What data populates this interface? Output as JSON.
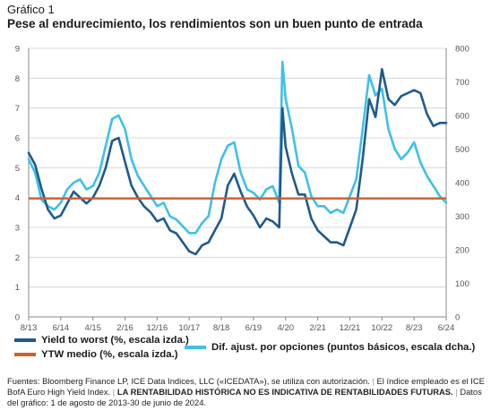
{
  "figure_label": "Gráfico 1",
  "title": "Pese al endurecimiento, los rendimientos son un buen punto de entrada",
  "source": {
    "part1": "Fuentes: Bloomberg Finance LP, ICE Data Indices, LLC («ICEDATA»), se utiliza con autorización.",
    "part2": "El índice empleado es el ICE BofA Euro High Yield Index.",
    "part3": "LA RENTABILIDAD HISTÓRICA NO ES INDICATIVA DE RENTABILIDADES FUTURAS.",
    "part4": "Datos del gráfico: 1 de agosto de 2013-30 de junio de 2024."
  },
  "colors": {
    "ytw": "#1f5a8c",
    "oas": "#3ec0ea",
    "mean": "#d0602a",
    "grid": "#cfcfcf",
    "axis": "#888888"
  },
  "chart_data": {
    "type": "line",
    "x_tick_labels": [
      "8/13",
      "6/14",
      "4/15",
      "2/16",
      "12/16",
      "10/17",
      "8/18",
      "6/19",
      "4/20",
      "2/21",
      "12/21",
      "10/22",
      "8/23",
      "6/24"
    ],
    "x_range": [
      "2013-08",
      "2024-06"
    ],
    "y_left": {
      "range": [
        0,
        9
      ],
      "ticks": [
        0,
        1,
        2,
        3,
        4,
        5,
        6,
        7,
        8,
        9
      ]
    },
    "y_right": {
      "range": [
        0,
        800
      ],
      "ticks": [
        0,
        100,
        200,
        300,
        400,
        500,
        600,
        700,
        800
      ]
    },
    "series": [
      {
        "name": "Yield to worst (%, escala izda.)",
        "axis": "left",
        "x": [
          "2013-08",
          "2013-10",
          "2013-12",
          "2014-02",
          "2014-04",
          "2014-06",
          "2014-08",
          "2014-10",
          "2014-12",
          "2015-02",
          "2015-04",
          "2015-06",
          "2015-08",
          "2015-10",
          "2015-12",
          "2016-02",
          "2016-04",
          "2016-06",
          "2016-08",
          "2016-10",
          "2016-12",
          "2017-02",
          "2017-04",
          "2017-06",
          "2017-08",
          "2017-10",
          "2017-12",
          "2018-02",
          "2018-04",
          "2018-06",
          "2018-08",
          "2018-10",
          "2018-12",
          "2019-02",
          "2019-04",
          "2019-06",
          "2019-08",
          "2019-10",
          "2019-12",
          "2020-02",
          "2020-03",
          "2020-04",
          "2020-06",
          "2020-08",
          "2020-10",
          "2020-12",
          "2021-02",
          "2021-04",
          "2021-06",
          "2021-08",
          "2021-10",
          "2021-12",
          "2022-02",
          "2022-04",
          "2022-06",
          "2022-08",
          "2022-10",
          "2022-12",
          "2023-02",
          "2023-04",
          "2023-06",
          "2023-08",
          "2023-10",
          "2023-12",
          "2024-02",
          "2024-04",
          "2024-06"
        ],
        "y": [
          5.5,
          5.1,
          4.3,
          3.6,
          3.3,
          3.4,
          3.8,
          4.2,
          4.0,
          3.8,
          4.0,
          4.4,
          5.0,
          5.9,
          6.0,
          5.2,
          4.4,
          4.0,
          3.7,
          3.5,
          3.2,
          3.3,
          2.9,
          2.8,
          2.5,
          2.2,
          2.1,
          2.4,
          2.5,
          2.9,
          3.3,
          4.4,
          4.8,
          4.2,
          3.7,
          3.4,
          3.0,
          3.3,
          3.2,
          3.0,
          7.0,
          5.7,
          4.8,
          4.1,
          4.1,
          3.3,
          2.9,
          2.7,
          2.5,
          2.5,
          2.4,
          3.0,
          3.6,
          5.3,
          7.3,
          6.7,
          8.3,
          7.3,
          7.1,
          7.4,
          7.5,
          7.6,
          7.5,
          6.8,
          6.4,
          6.5,
          6.5
        ]
      },
      {
        "name": "Dif. ajust. por opciones (puntos básicos, escala dcha.)",
        "axis": "right",
        "x": [
          "2013-08",
          "2013-10",
          "2013-12",
          "2014-02",
          "2014-04",
          "2014-06",
          "2014-08",
          "2014-10",
          "2014-12",
          "2015-02",
          "2015-04",
          "2015-06",
          "2015-08",
          "2015-10",
          "2015-12",
          "2016-02",
          "2016-04",
          "2016-06",
          "2016-08",
          "2016-10",
          "2016-12",
          "2017-02",
          "2017-04",
          "2017-06",
          "2017-08",
          "2017-10",
          "2017-12",
          "2018-02",
          "2018-04",
          "2018-06",
          "2018-08",
          "2018-10",
          "2018-12",
          "2019-02",
          "2019-04",
          "2019-06",
          "2019-08",
          "2019-10",
          "2019-12",
          "2020-02",
          "2020-03",
          "2020-04",
          "2020-06",
          "2020-08",
          "2020-10",
          "2020-12",
          "2021-02",
          "2021-04",
          "2021-06",
          "2021-08",
          "2021-10",
          "2021-12",
          "2022-02",
          "2022-04",
          "2022-06",
          "2022-08",
          "2022-10",
          "2022-12",
          "2023-02",
          "2023-04",
          "2023-06",
          "2023-08",
          "2023-10",
          "2023-12",
          "2024-02",
          "2024-04",
          "2024-06"
        ],
        "y": [
          470,
          430,
          350,
          330,
          320,
          340,
          380,
          400,
          410,
          380,
          390,
          430,
          510,
          590,
          600,
          560,
          470,
          420,
          390,
          360,
          330,
          340,
          300,
          290,
          270,
          250,
          250,
          280,
          300,
          400,
          470,
          510,
          520,
          430,
          380,
          370,
          350,
          380,
          390,
          340,
          760,
          650,
          560,
          450,
          430,
          360,
          330,
          330,
          310,
          320,
          310,
          360,
          410,
          560,
          720,
          660,
          680,
          560,
          500,
          470,
          490,
          520,
          460,
          420,
          390,
          360,
          340
        ]
      }
    ],
    "mean_line": {
      "name": "YTW medio (%, escala izda.)",
      "axis": "left",
      "value": 3.97
    },
    "grid": "horizontal",
    "legend_position": "bottom"
  }
}
